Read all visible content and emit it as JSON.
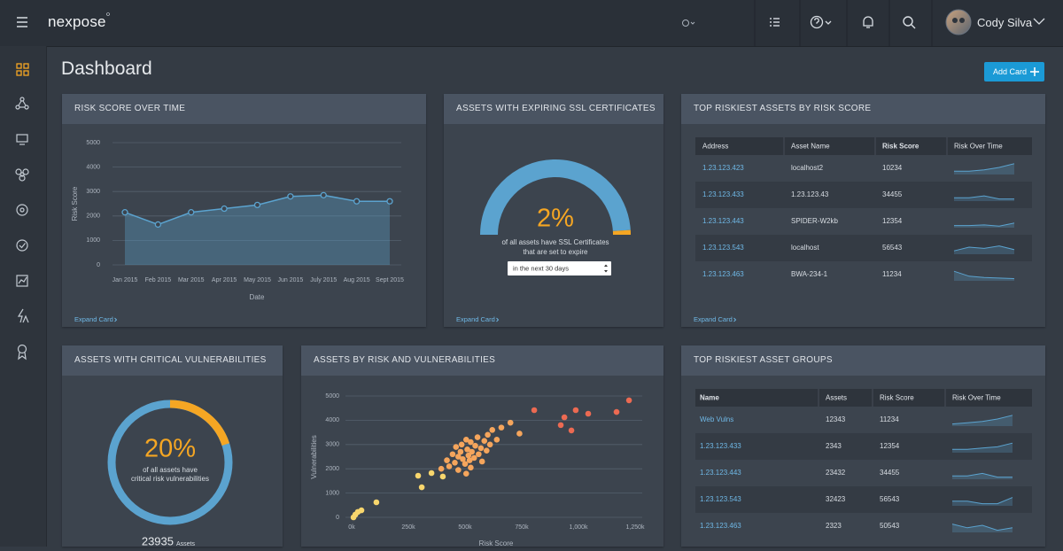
{
  "nav": {
    "brand": "nexpose",
    "user": "Cody Silva"
  },
  "page_title": "Dashboard",
  "add_card": "Add Card",
  "cards": [
    {
      "type": "line",
      "title": "RISK SCORE OVER TIME",
      "x_label": "Date",
      "y_label": "Risk Score",
      "categories": [
        "Jan 2015",
        "Feb 2015",
        "Mar 2015",
        "Apr 2015",
        "May 2015",
        "Jun 2015",
        "July 2015",
        "Aug 2015",
        "Sept 2015"
      ],
      "values": [
        2150,
        1650,
        2150,
        2300,
        2450,
        2800,
        2850,
        2600,
        2600
      ],
      "ylim": [
        0,
        5000
      ],
      "yticks": [
        0,
        1000,
        2000,
        3000,
        4000,
        5000
      ],
      "grid": true,
      "color": "#5ba3cf",
      "expand": "Expand Card"
    },
    {
      "type": "gauge",
      "title": "ASSETS WITH EXPIRING SSL CERTIFICATES",
      "value": 2,
      "value_label": "2%",
      "caption": [
        "of all assets have SSL Certificates",
        "that are set to expire"
      ],
      "select": "in the next 30 days",
      "color": "#f5a623",
      "track_color": "#5ba3cf",
      "expand": "Expand Card"
    },
    {
      "type": "table",
      "title": "TOP RISKIEST ASSETS BY RISK SCORE",
      "columns": [
        "Address",
        "Asset Name",
        "Risk Score",
        "Risk Over Time"
      ],
      "rows": [
        [
          "1.23.123.423",
          "localhost2",
          10234
        ],
        [
          "1.23.123.433",
          "1.23.123.43",
          34455
        ],
        [
          "1.23.123.443",
          "SPIDER-W2kb",
          12354
        ],
        [
          "1.23.123.543",
          "localhost",
          56543
        ],
        [
          "1.23.123.463",
          "BWA-234-1",
          11234
        ]
      ],
      "trends": [
        [
          2,
          2,
          3,
          5,
          8
        ],
        [
          2,
          2,
          3.5,
          1,
          1
        ],
        [
          1,
          1,
          1.5,
          0.5,
          3
        ],
        [
          2,
          5,
          4,
          6,
          3
        ],
        [
          7,
          3,
          2,
          1.5,
          1
        ]
      ],
      "trend_ylim": [
        0,
        10
      ],
      "expand": "Expand Card"
    },
    {
      "type": "donut",
      "title": "ASSETS WITH CRITICAL VULNERABILITIES",
      "value": 20,
      "value_label": "20%",
      "caption": [
        "of all assets have",
        "critical risk vulnerabilities"
      ],
      "count": 23935,
      "count_unit": "Assets",
      "color": "#f5a623",
      "track_color": "#5ba3cf"
    },
    {
      "type": "scatter",
      "title": "ASSETS BY RISK AND VULNERABILITIES",
      "x_label": "Risk Score",
      "y_label": "Vulnerabilities",
      "xlim": [
        0,
        1250000
      ],
      "xticks": [
        {
          "value": 0,
          "label": "0k"
        },
        {
          "value": 250000,
          "label": "250k"
        },
        {
          "value": 500000,
          "label": "500k"
        },
        {
          "value": 750000,
          "label": "750k"
        },
        {
          "value": 1000000,
          "label": "1,000k"
        },
        {
          "value": 1250000,
          "label": "1,250k"
        }
      ],
      "ylim": [
        0,
        5000
      ],
      "yticks": [
        0,
        1000,
        2000,
        3000,
        4000,
        5000
      ],
      "grid": true,
      "series": [
        {
          "color": "#f8d66d",
          "x": [
            8000,
            16000,
            27000,
            43000,
            109000,
            293000,
            309000,
            352000,
            402000
          ],
          "values": [
            0,
            110,
            220,
            290,
            620,
            1715,
            1240,
            1825,
            1680
          ]
        },
        {
          "color": "#f5a55c",
          "x": [
            420000,
            430000,
            445000,
            455000,
            460000,
            470000,
            480000,
            485000,
            490000,
            500000,
            505000,
            510000,
            515000,
            520000,
            525000,
            530000,
            540000,
            545000,
            555000,
            560000,
            570000,
            575000,
            585000,
            595000,
            600000,
            610000,
            620000,
            640000,
            660000,
            700000,
            740000,
            470000,
            395000,
            525000,
            505000
          ],
          "values": [
            2350,
            2100,
            2600,
            2250,
            2900,
            2500,
            2700,
            3000,
            2400,
            2200,
            3200,
            2800,
            2550,
            2350,
            3100,
            2700,
            2450,
            2950,
            3300,
            2600,
            2850,
            2300,
            3150,
            2750,
            3400,
            3000,
            3600,
            3200,
            3700,
            3900,
            3450,
            1950,
            2000,
            2050,
            1800
          ]
        },
        {
          "color": "#ec6a52",
          "x": [
            805000,
            922000,
            938000,
            969000,
            988000,
            1043000,
            1168000,
            1223000
          ],
          "values": [
            4416,
            3800,
            4120,
            3580,
            4416,
            4270,
            4340,
            4820
          ]
        }
      ]
    },
    {
      "type": "table",
      "title": "TOP RISKIEST ASSET GROUPS",
      "columns": [
        "Name",
        "Assets",
        "Risk Score",
        "Risk Over Time"
      ],
      "rows": [
        [
          "Web Vulns",
          12343,
          11234
        ],
        [
          "1.23.123.433",
          2343,
          12354
        ],
        [
          "1.23.123.443",
          23432,
          34455
        ],
        [
          "1.23.123.543",
          32423,
          56543
        ],
        [
          "1.23.123.463",
          2323,
          50543
        ]
      ],
      "trends": [
        [
          1,
          2,
          3,
          5,
          8
        ],
        [
          2,
          2,
          3,
          4,
          7
        ],
        [
          2,
          2,
          4,
          1,
          1
        ],
        [
          3,
          3,
          1,
          1,
          6
        ],
        [
          6,
          3,
          5,
          1,
          3
        ]
      ],
      "trend_ylim": [
        0,
        10
      ]
    }
  ]
}
